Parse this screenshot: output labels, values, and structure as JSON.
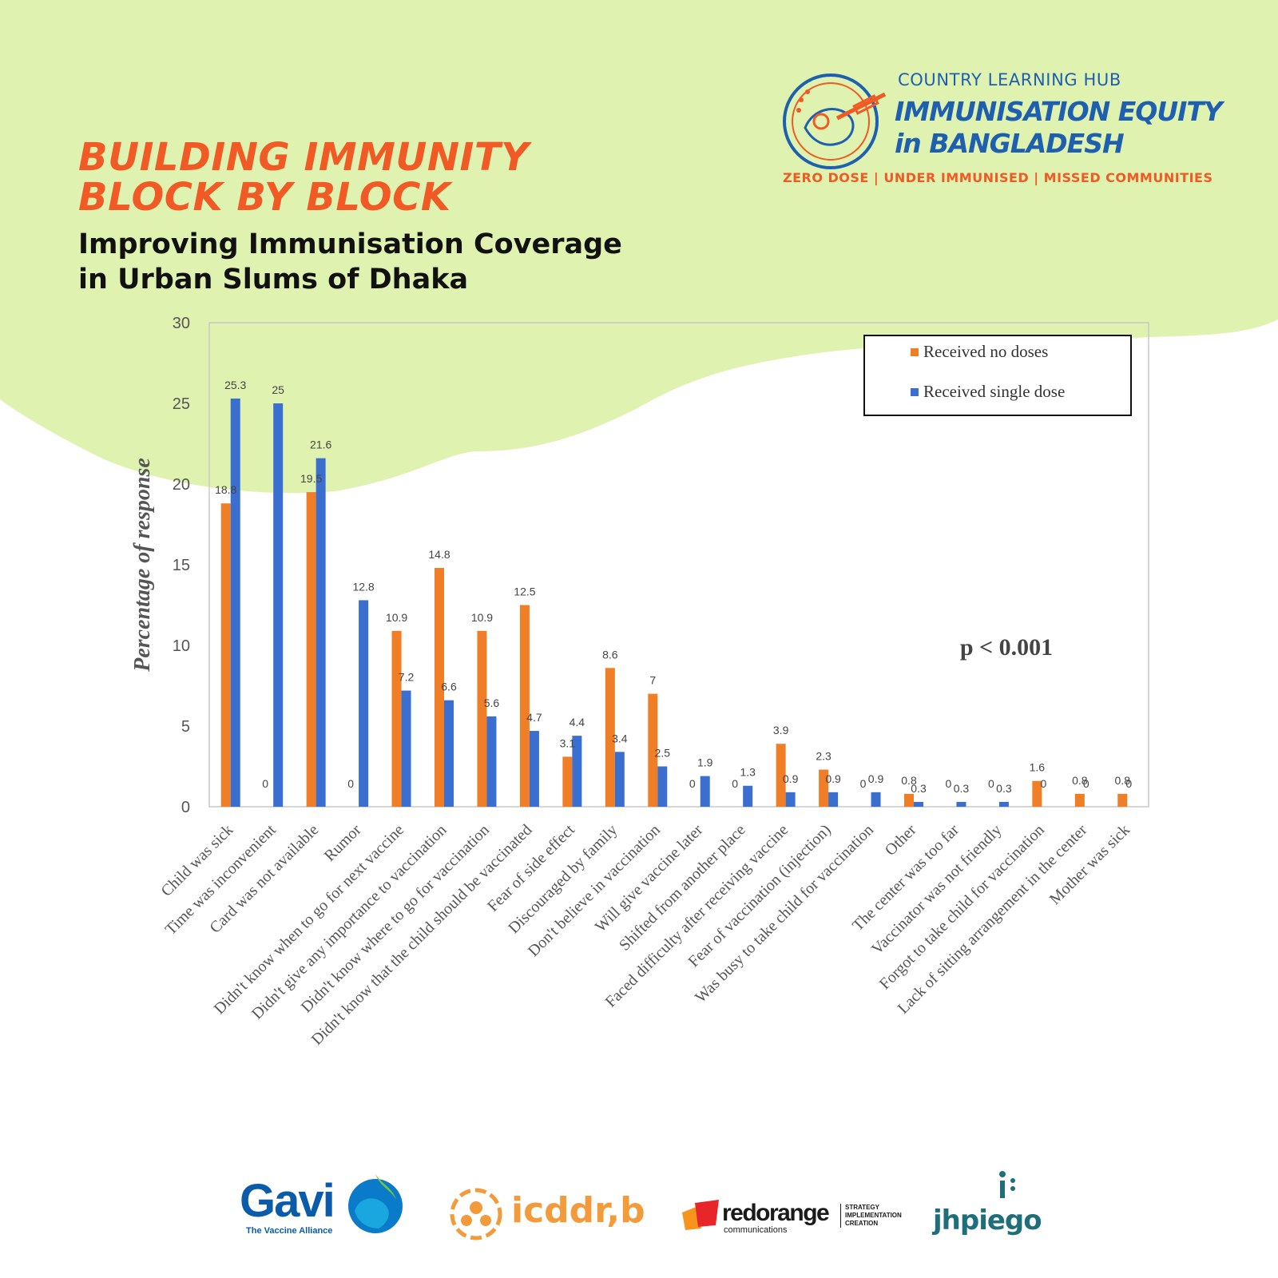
{
  "header": {
    "headline_line1": "BUILDING IMMUNITY",
    "headline_line2": "BLOCK BY BLOCK",
    "subhead_line1": "Improving Immunisation Coverage",
    "subhead_line2": "in Urban Slums of Dhaka"
  },
  "hub_logo": {
    "top": "COUNTRY LEARNING HUB",
    "line1": "IMMUNISATION EQUITY",
    "line2": "in BANGLADESH",
    "tagline": "ZERO DOSE | UNDER IMMUNISED | MISSED COMMUNITIES"
  },
  "colors": {
    "accent_orange": "#f15a24",
    "hub_blue": "#1f5fb0",
    "background_green": "#dff2b0",
    "series_no_doses": "#f07e26",
    "series_single_dose": "#3a6fd0"
  },
  "chart_data": {
    "type": "bar",
    "ylabel": "Percentage  of response",
    "ylim": [
      0,
      30
    ],
    "yticks": [
      0,
      5,
      10,
      15,
      20,
      25,
      30
    ],
    "legend_position": "top-right",
    "annotation": "p < 0.001",
    "categories": [
      "Child was sick",
      "Time was inconvenient",
      "Card was not available",
      "Rumor",
      "Didn't know when to go  for next vaccine",
      "Didn't give any importance to vaccination",
      "Didn't know where to go for vaccination",
      "Didn't know that the child should be vaccinated",
      "Fear of side effect",
      "Discouraged by family",
      "Don't believe in vaccination",
      "Will give vaccine later",
      "Shifted from another place",
      "Faced difficulty after receiving vaccine",
      "Fear of vaccination (injection)",
      "Was busy to  take child for vaccination",
      "Other",
      "The center was too far",
      "Vaccinator was not friendly",
      "Forgot to take child for vaccination",
      "Lack of sitting arrangement in the center",
      "Mother was sick"
    ],
    "series": [
      {
        "name": "Received no doses",
        "values": [
          18.8,
          0,
          19.5,
          0,
          10.9,
          14.8,
          10.9,
          12.5,
          3.1,
          8.6,
          7,
          0,
          0,
          3.9,
          2.3,
          0,
          0.8,
          0,
          0,
          1.6,
          0.8,
          0.8
        ],
        "labels": [
          "18.8",
          "0",
          "19.5",
          "0",
          "10.9",
          "14.8",
          "10.9",
          "12.5",
          "3.1",
          "8.6",
          "7",
          "0",
          "0",
          "3.9",
          "2.3",
          "0",
          "0.8",
          "0",
          "0",
          "1.6",
          "0.8",
          "0.8"
        ]
      },
      {
        "name": "Received single dose",
        "values": [
          25.3,
          25,
          21.6,
          12.8,
          7.2,
          6.6,
          5.6,
          4.7,
          4.4,
          3.4,
          2.5,
          1.9,
          1.3,
          0.9,
          0.9,
          0.9,
          0.3,
          0.3,
          0.3,
          0,
          0,
          0
        ],
        "labels": [
          "25.3",
          "25",
          "21.6",
          "12.8",
          "7.2",
          "6.6",
          "5.6",
          "4.7",
          "4.4",
          "3.4",
          "2.5",
          "1.9",
          "1.3",
          "0.9",
          "0.9",
          "0.9",
          "0.3",
          "0.3",
          "0.3",
          "0",
          "0",
          "0"
        ]
      }
    ]
  },
  "footer_logos": {
    "gavi": "Gavi",
    "gavi_sub": "The Vaccine Alliance",
    "icddr": "icddr,b",
    "redorange": "redorange",
    "redorange_sub": "communications",
    "redorange_tag1": "STRATEGY",
    "redorange_tag2": "IMPLEMENTATION",
    "redorange_tag3": "CREATION",
    "jhpiego": "jhpiego"
  }
}
